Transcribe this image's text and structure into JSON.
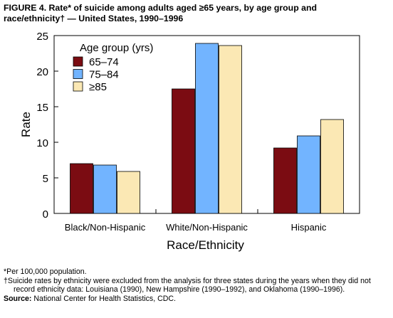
{
  "figure": {
    "title_line1": "FIGURE 4. Rate* of suicide among adults aged ≥65 years, by age group and",
    "title_line2": "race/ethnicity† — United States, 1990–1996"
  },
  "chart_data": {
    "type": "bar",
    "xlabel": "Race/Ethnicity",
    "ylabel": "Rate",
    "ylim": [
      0,
      25
    ],
    "yticks": [
      0,
      5,
      10,
      15,
      20,
      25
    ],
    "categories": [
      "Black/Non-Hispanic",
      "White/Non-Hispanic",
      "Hispanic"
    ],
    "legend_title": "Age group (yrs)",
    "legend_position": "top-left",
    "grid": false,
    "series": [
      {
        "name": "65–74",
        "color": "#7b0c12",
        "values": [
          7.0,
          17.5,
          9.2
        ]
      },
      {
        "name": "75–84",
        "color": "#72b4ff",
        "values": [
          6.8,
          23.9,
          10.9
        ]
      },
      {
        "name": "≥85",
        "color": "#fbe8b4",
        "values": [
          5.9,
          23.6,
          13.2
        ]
      }
    ]
  },
  "footnotes": {
    "star": "*Per 100,000 population.",
    "dagger": "†Suicide rates by ethnicity were excluded from the analysis for three states during the years when they did not record ethnicity data: Louisiana (1990), New Hampshire (1990–1992), and Oklahoma (1990–1996).",
    "source_label": "Source:",
    "source_text": " National Center for Health Statistics, CDC."
  }
}
